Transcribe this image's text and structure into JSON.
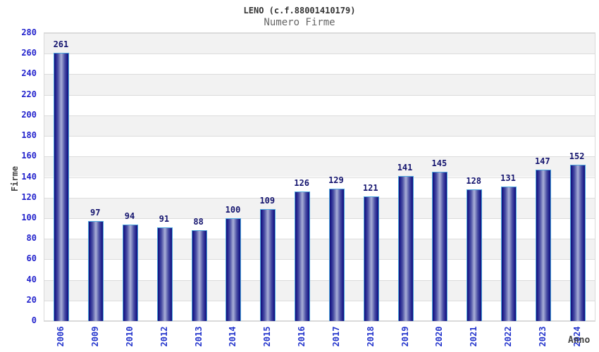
{
  "chart_data": {
    "type": "bar",
    "title": "LENO (c.f.88001410179)",
    "subtitle": "Numero Firme",
    "xlabel": "Anno",
    "ylabel": "Firme",
    "categories": [
      "2006",
      "2009",
      "2010",
      "2012",
      "2013",
      "2014",
      "2015",
      "2016",
      "2017",
      "2018",
      "2019",
      "2020",
      "2021",
      "2022",
      "2023",
      "2024"
    ],
    "values": [
      261,
      97,
      94,
      91,
      88,
      100,
      109,
      126,
      129,
      121,
      141,
      145,
      128,
      131,
      147,
      152
    ],
    "ylim": [
      0,
      280
    ],
    "ytick_step": 20,
    "grid": true,
    "legend": "none",
    "colors": {
      "bar_edge": "#0f0f78",
      "bar_center": "#a9afd7",
      "bar_border": "#4da6dd",
      "axis_tick_label": "#2222cc",
      "value_label": "#14146e",
      "band_gray": "#f2f2f2",
      "band_white": "#ffffff",
      "gridline": "#dcdcdc",
      "title": "#333333",
      "subtitle": "#666666",
      "axis_title": "#444444"
    }
  }
}
